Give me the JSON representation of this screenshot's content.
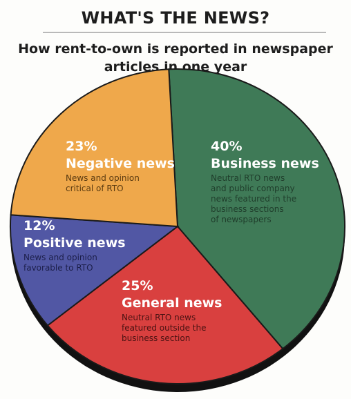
{
  "chart_data": {
    "type": "pie",
    "title": "WHAT'S THE NEWS?",
    "subtitle": "How rent-to-own is reported in newspaper articles in one year",
    "slices": [
      {
        "name": "Business news",
        "percent_label": "40%",
        "value": 40,
        "color": "#3f7a57",
        "description": [
          "Neutral RTO news",
          "and public company",
          "news featured in the",
          "business sections",
          "of newspapers"
        ]
      },
      {
        "name": "General news",
        "percent_label": "25%",
        "value": 25,
        "color": "#d9403f",
        "description": [
          "Neutral RTO news",
          "featured outside the",
          "business section"
        ]
      },
      {
        "name": "Positive news",
        "percent_label": "12%",
        "value": 12,
        "color": "#5157a4",
        "description": [
          "News and opinion",
          "favorable to RTO"
        ]
      },
      {
        "name": "Negative news",
        "percent_label": "23%",
        "value": 23,
        "color": "#efa84b",
        "description": [
          "News and opinion",
          "critical of RTO"
        ]
      }
    ]
  }
}
